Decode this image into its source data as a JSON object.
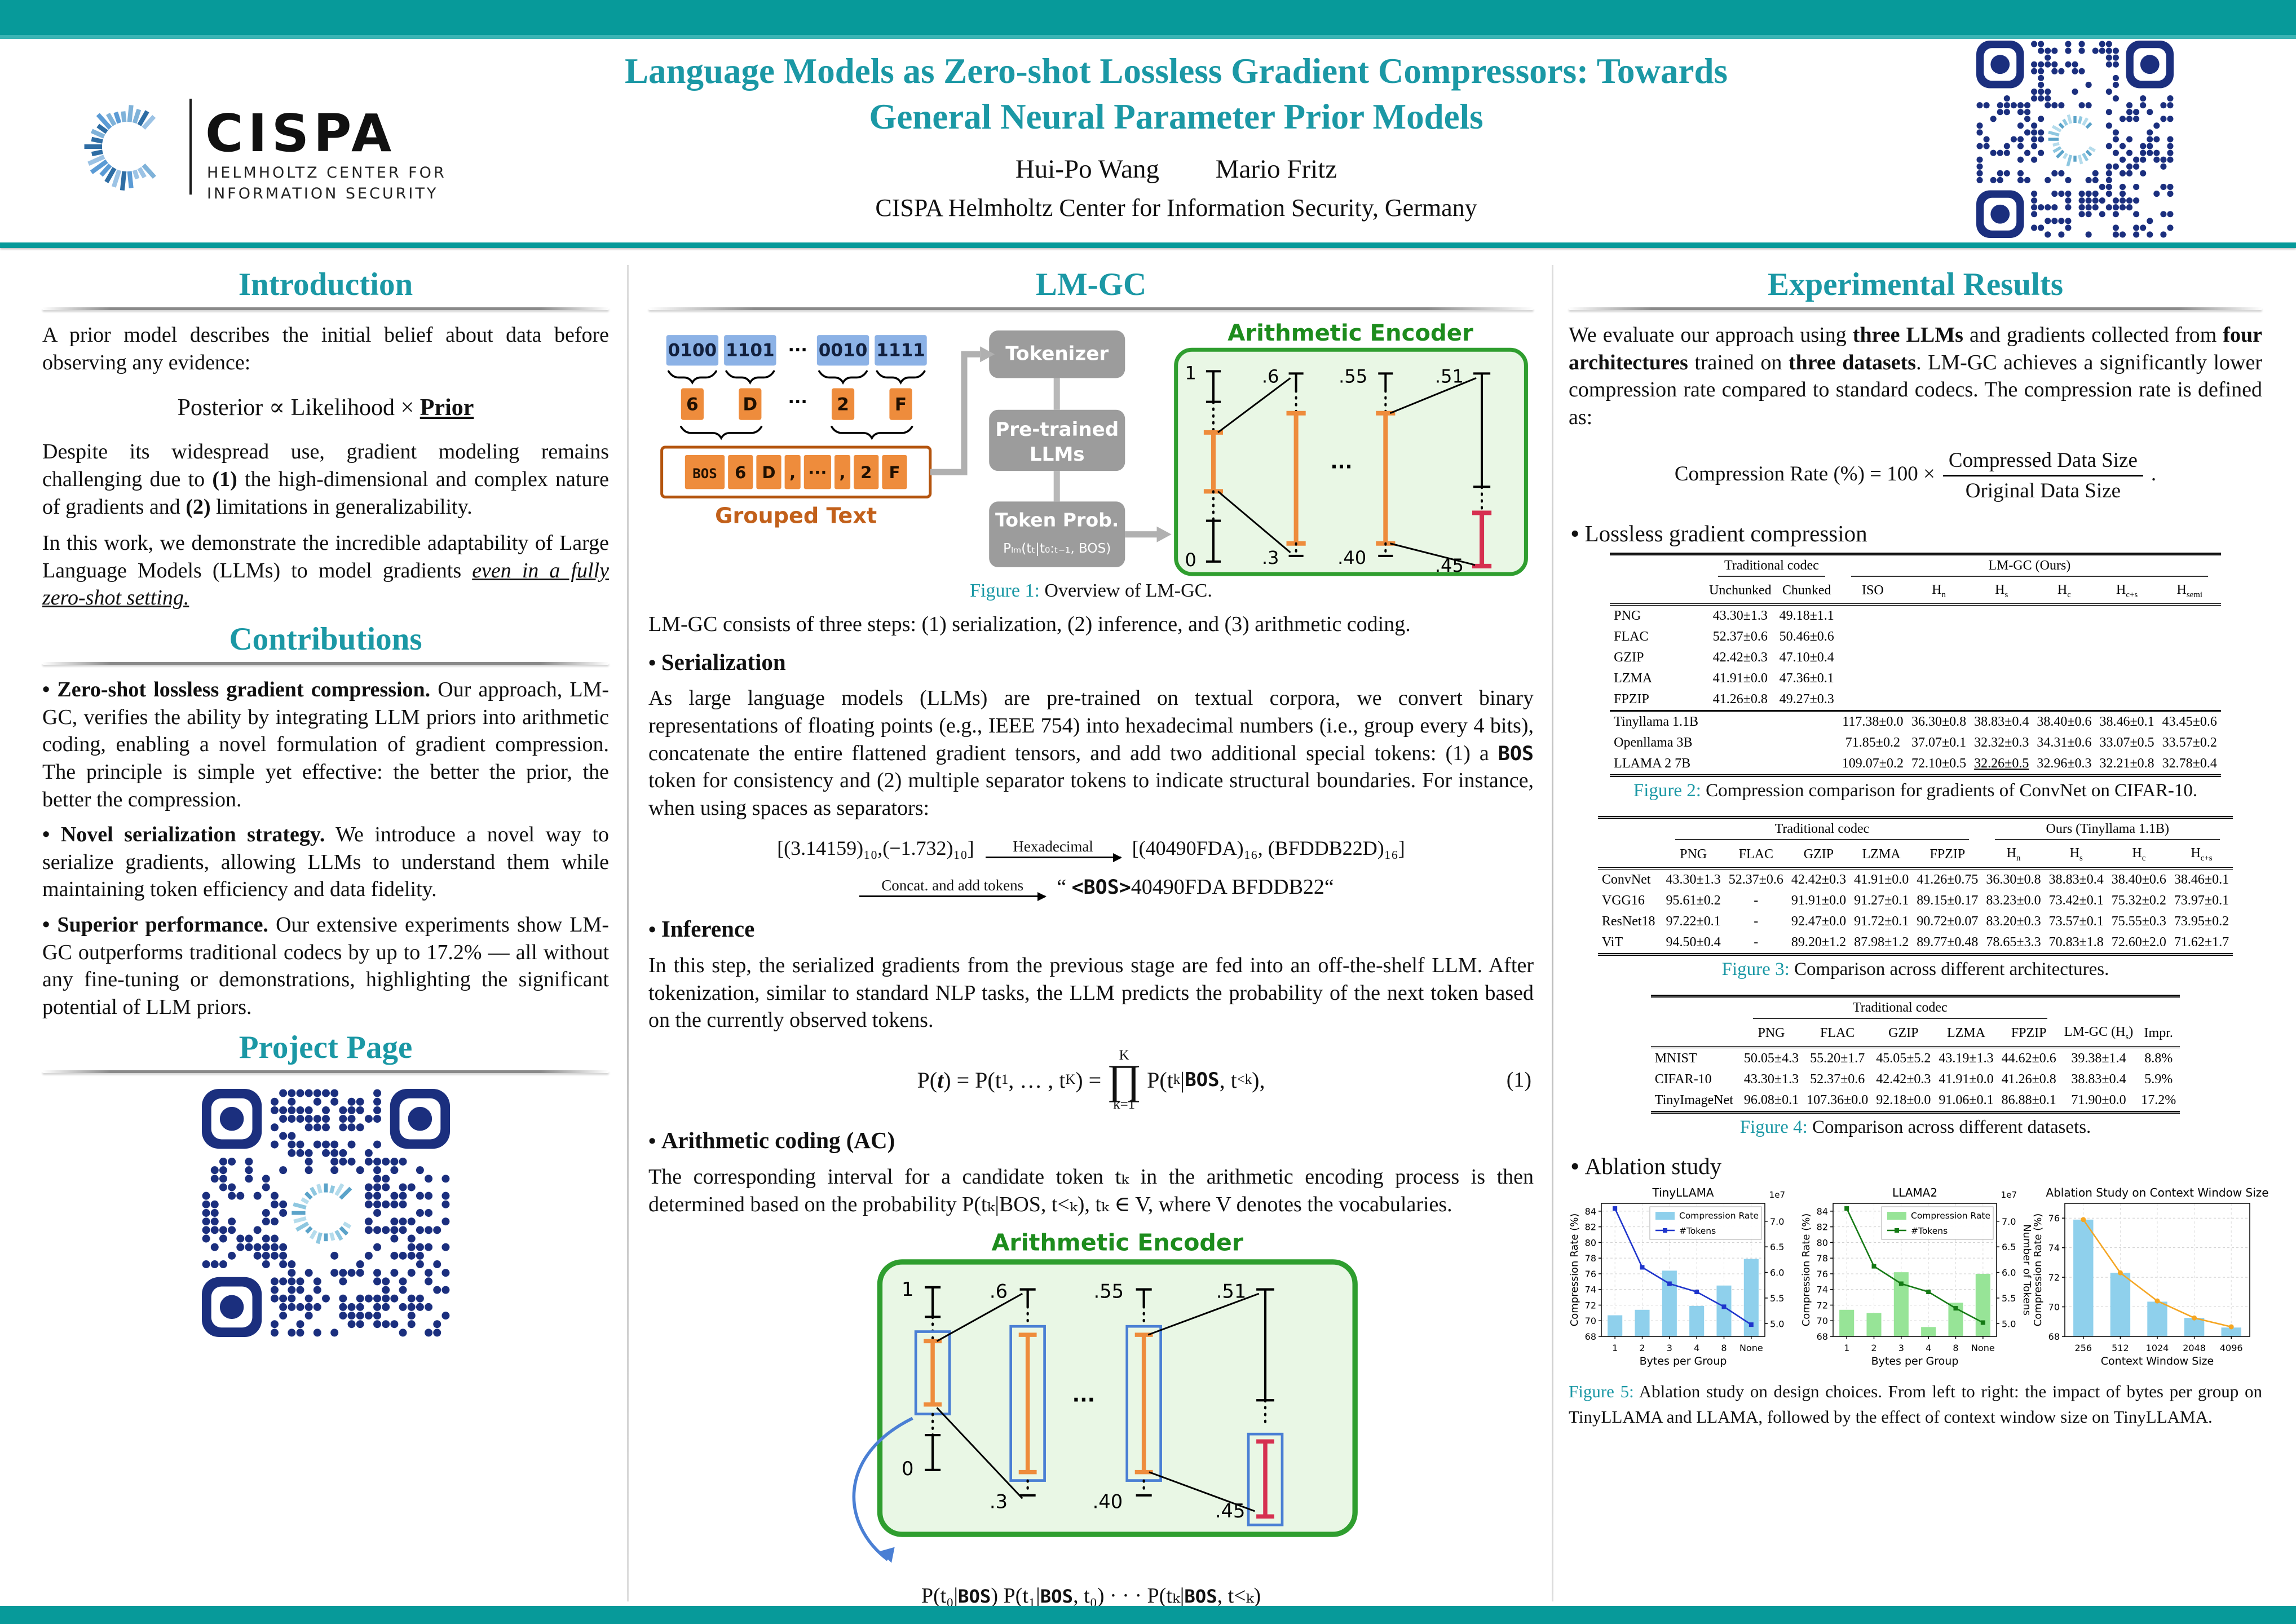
{
  "colors": {
    "teal_band": "#079a9a",
    "teal_heading": "#1b98a5",
    "qr_navy": "#1b2f7e",
    "orange": "#ee8c3c",
    "orange_dark": "#b4540e",
    "orange_label": "#c2601a",
    "green_title": "#1d8c1d",
    "green_border": "#2f9e2f",
    "green_fill": "#e9f7e5",
    "blue_box": "#8cb2e6",
    "gray_box": "#9c9c9c",
    "red_bar": "#d63050",
    "blue_outline": "#4a7fd4"
  },
  "header": {
    "title_line1": "Language Models as Zero-shot Lossless Gradient Compressors: Towards",
    "title_line2": "General Neural Parameter Prior Models",
    "authors": [
      "Hui-Po Wang",
      "Mario Fritz"
    ],
    "affiliation": "CISPA Helmholtz Center for Information Security, Germany",
    "logo": {
      "name": "CISPA",
      "sub1": "HELMHOLTZ CENTER FOR",
      "sub2": "INFORMATION SECURITY"
    }
  },
  "intro": {
    "heading": "Introduction",
    "p1": "A prior model describes the initial belief about data before observing any evidence:",
    "formula": {
      "posterior": "Posterior",
      "propto": "∝",
      "likelihood": "Likelihood",
      "times": "×",
      "prior": "Prior"
    },
    "p2_parts": [
      "Despite its widespread use, gradient modeling remains challenging due to ",
      "(1)",
      " the high-dimensional and complex nature of gradients and ",
      "(2)",
      " limitations in generalizability."
    ],
    "p3_parts": [
      "In this work, we demonstrate the incredible adaptability of Large Language Models (LLMs) to model gradients ",
      "even in a fully zero-shot setting."
    ]
  },
  "contributions": {
    "heading": "Contributions",
    "items": [
      {
        "lead": "Zero-shot lossless gradient compression.",
        "body": "Our approach, LM-GC, verifies the ability by integrating LLM priors into arithmetic coding, enabling a novel formulation of gradient compression. The principle is simple yet effective: the better the prior, the better the compression."
      },
      {
        "lead": "Novel serialization strategy.",
        "body": "We introduce a novel way to serialize gradients, allowing LLMs to understand them while maintaining token efficiency and data fidelity."
      },
      {
        "lead": "Superior performance.",
        "body": "Our extensive experiments show LM-GC outperforms traditional codecs by up to 17.2% — all without any fine-tuning or demonstrations, highlighting the significant potential of LLM priors."
      }
    ]
  },
  "project_page": {
    "heading": "Project Page"
  },
  "lmgc": {
    "heading": "LM-GC",
    "fig1": {
      "binary_tokens": [
        "0100",
        "1101",
        "···",
        "0010",
        "1111"
      ],
      "hex_tokens": [
        "6",
        "D",
        "···",
        "2",
        "F"
      ],
      "grouped_tokens": [
        "BOS",
        "6",
        "D",
        ",",
        "···",
        ",",
        "2",
        "F"
      ],
      "grouped_label": "Grouped Text",
      "pipeline": [
        "Tokenizer",
        "Pre-trained",
        "LLMs",
        "Token Prob."
      ],
      "token_prob_formula": "Pₗₘ(tₜ|t₀:ₜ₋₁, BOS)",
      "encoder_title": "Arithmetic Encoder",
      "axis_labels": {
        "one": "1",
        "zero": "0",
        "l2t": ".6",
        "l2b": ".3",
        "l3t": ".55",
        "l3b": ".40",
        "l4t": ".51",
        "l4b": ".45",
        "dots": "···"
      },
      "caption_prefix": "Figure 1:",
      "caption": "Overview of LM-GC."
    },
    "steps_text": "LM-GC consists of three steps: (1) serialization, (2) inference, and (3) arithmetic coding.",
    "serialization": {
      "heading": "Serialization",
      "body_parts": [
        "As large language models (LLMs) are pre-trained on textual corpora, we convert binary representations of floating points (e.g., IEEE 754) into hexadecimal numbers (i.e., group every 4 bits), concatenate the entire flattened gradient tensors, and add two additional special tokens: (1) a ",
        "BOS",
        " token for consistency and (2) multiple separator tokens to indicate structural boundaries. For instance, when using spaces as separators:"
      ],
      "ex1": {
        "lhs": "[(3.14159)₁₀,(−1.732)₁₀]",
        "arrow_label": "Hexadecimal",
        "rhs": "[(40490FDA)₁₆, (BFDDB22D)₁₆]"
      },
      "ex2": {
        "arrow_label": "Concat. and add tokens",
        "quote_open": "“ ",
        "bos": "<BOS>",
        "rest": "40490FDA BFDDB22",
        "quote_close": "“"
      }
    },
    "inference": {
      "heading": "Inference",
      "body": "In this step, the serialized gradients from the previous stage are fed into an off-the-shelf LLM. After tokenization, similar to standard NLP tasks, the LLM predicts the probability of the next token based on the currently observed tokens.",
      "eq": {
        "p1": "P(",
        "t": "t",
        "p2": ") = P(t",
        "s1": "1",
        "p3": ", … , t",
        "sK": "K",
        "p4": ") =",
        "prod": "∏",
        "prodTop": "K",
        "prodBot": "k=1",
        "p5": "P(t",
        "sk": "k",
        "bar": "|",
        "bos": "BOS",
        "p6": ", t",
        "slt": "<k",
        "p7": "),",
        "tag": "(1)"
      }
    },
    "ac": {
      "heading": "Arithmetic coding (AC)",
      "body": "The corresponding interval for a candidate token tₖ in the arithmetic encoding process is then determined based on the probability P(tₖ|BOS, t<ₖ), tₖ ∈ V, where V denotes the vocabularies."
    },
    "encoder2": {
      "title": "Arithmetic Encoder",
      "caption_parts": [
        "P(t₀|",
        "BOS",
        ") P(t₁|",
        "BOS",
        ", t₀)  · · ·  P(tₖ|",
        "BOS",
        ", t<ₖ)"
      ]
    }
  },
  "results": {
    "heading": "Experimental Results",
    "p1_parts": [
      "We evaluate our approach using ",
      "three LLMs",
      " and gradients collected from ",
      "four architectures",
      " trained on ",
      "three datasets",
      ". LM-GC achieves a significantly lower compression rate compared to standard codecs. The compression rate is defined as:"
    ],
    "formula": {
      "lhs": "Compression Rate (%) = 100 ×",
      "num": "Compressed Data Size",
      "den": "Original Data Size",
      "period": "."
    },
    "bullet1": "Lossless gradient compression",
    "fig2": {
      "group_headers": [
        {
          "label": "",
          "span": 1
        },
        {
          "label": "Traditional codec",
          "span": 2
        },
        {
          "label": "LM-GC (Ours)",
          "span": 6
        }
      ],
      "headers": [
        "",
        "Unchunked",
        "Chunked",
        "ISO",
        "H_n",
        "H_s",
        "H_c",
        "H_c+s",
        "H_semi"
      ],
      "rows": [
        {
          "label": "PNG",
          "cells": [
            "43.30±1.3",
            "49.18±1.1",
            "",
            "",
            "",
            "",
            "",
            ""
          ]
        },
        {
          "label": "FLAC",
          "cells": [
            "52.37±0.6",
            "50.46±0.6",
            "",
            "",
            "",
            "",
            "",
            ""
          ]
        },
        {
          "label": "GZIP",
          "cells": [
            "42.42±0.3",
            "47.10±0.4",
            "",
            "",
            "",
            "",
            "",
            ""
          ]
        },
        {
          "label": "LZMA",
          "cells": [
            "41.91±0.0",
            "47.36±0.1",
            "",
            "",
            "",
            "",
            "",
            ""
          ]
        },
        {
          "label": "FPZIP",
          "cells": [
            "41.26±0.8",
            "49.27±0.3",
            "",
            "",
            "",
            "",
            "",
            ""
          ]
        },
        {
          "label": "Tinyllama 1.1B",
          "sep": true,
          "cells": [
            "",
            "",
            "117.38±0.0",
            "36.30±0.8",
            "38.83±0.4",
            "38.40±0.6",
            "38.46±0.1",
            "43.45±0.6"
          ]
        },
        {
          "label": "Openllama 3B",
          "cells": [
            "",
            "",
            "71.85±0.2",
            "37.07±0.1",
            "32.32±0.3",
            "34.31±0.6",
            "33.07±0.5",
            "33.57±0.2"
          ]
        },
        {
          "label": "LLAMA 2 7B",
          "cells": [
            "",
            "",
            "109.07±0.2",
            "72.10±0.5",
            "u:32.26±0.5",
            "32.96±0.3",
            "b:32.21±0.8",
            "32.78±0.4"
          ]
        }
      ],
      "caption_prefix": "Figure 2:",
      "caption": "Compression comparison for gradients of ConvNet on CIFAR-10."
    },
    "fig3": {
      "group_headers": [
        {
          "label": "",
          "span": 1
        },
        {
          "label": "Traditional codec",
          "span": 5
        },
        {
          "label": "Ours (Tinyllama 1.1B)",
          "span": 4
        }
      ],
      "headers": [
        "",
        "PNG",
        "FLAC",
        "GZIP",
        "LZMA",
        "FPZIP",
        "H_n",
        "H_s",
        "H_c",
        "H_c+s"
      ],
      "rows": [
        {
          "label": "ConvNet",
          "cells": [
            "43.30±1.3",
            "52.37±0.6",
            "42.42±0.3",
            "41.91±0.0",
            "41.26±0.75",
            "b:36.30±0.8",
            "38.83±0.4",
            "38.40±0.6",
            "38.46±0.1"
          ]
        },
        {
          "label": "VGG16",
          "cells": [
            "95.61±0.2",
            "-",
            "91.91±0.0",
            "91.27±0.1",
            "89.15±0.17",
            "83.23±0.0",
            "b:73.42±0.1",
            "75.32±0.2",
            "73.97±0.1"
          ]
        },
        {
          "label": "ResNet18",
          "cells": [
            "97.22±0.1",
            "-",
            "92.47±0.0",
            "91.72±0.1",
            "90.72±0.07",
            "83.20±0.3",
            "b:73.57±0.1",
            "75.55±0.3",
            "73.95±0.2"
          ]
        },
        {
          "label": "ViT",
          "cells": [
            "94.50±0.4",
            "-",
            "89.20±1.2",
            "87.98±1.2",
            "89.77±0.48",
            "78.65±3.3",
            "b:70.83±1.8",
            "72.60±2.0",
            "71.62±1.7"
          ]
        }
      ],
      "caption_prefix": "Figure 3:",
      "caption": "Comparison across different architectures."
    },
    "fig4": {
      "group_headers": [
        {
          "label": "",
          "span": 1
        },
        {
          "label": "Traditional codec",
          "span": 5
        },
        {
          "label": "",
          "span": 1
        },
        {
          "label": "",
          "span": 1
        }
      ],
      "headers": [
        "",
        "PNG",
        "FLAC",
        "GZIP",
        "LZMA",
        "FPZIP",
        "LM-GC (H_s)",
        "Impr."
      ],
      "rows": [
        {
          "label": "MNIST",
          "cells": [
            "50.05±4.3",
            "55.20±1.7",
            "45.05±5.2",
            "43.19±1.3",
            "44.62±0.6",
            "b:39.38±1.4",
            "8.8%"
          ]
        },
        {
          "label": "CIFAR-10",
          "cells": [
            "43.30±1.3",
            "52.37±0.6",
            "42.42±0.3",
            "41.91±0.0",
            "41.26±0.8",
            "b:38.83±0.4",
            "5.9%"
          ]
        },
        {
          "label": "TinyImageNet",
          "cells": [
            "96.08±0.1",
            "107.36±0.0",
            "92.18±0.0",
            "91.06±0.1",
            "86.88±0.1",
            "b:71.90±0.0",
            "17.2%"
          ]
        }
      ],
      "caption_prefix": "Figure 4:",
      "caption": "Comparison across different datasets."
    },
    "bullet2": "Ablation study",
    "fig5_caption_prefix": "Figure 5:",
    "fig5_caption": "Ablation study on design choices. From left to right: the impact of bytes per group on TinyLLAMA and LLAMA, followed by the effect of context window size on TinyLLAMA."
  },
  "chart_data": [
    {
      "type": "bar+line",
      "title": "TinyLLAMA",
      "xlabel": "Bytes per Group",
      "ylabel": "Compression Rate (%)",
      "categories": [
        "1",
        "2",
        "3",
        "4",
        "8",
        "None"
      ],
      "bar_name": "Compression Rate",
      "bars": [
        70.7,
        71.4,
        76.4,
        71.9,
        74.5,
        77.9
      ],
      "bar_color": "#8fd0ec",
      "line_name": "#Tokens",
      "line_color": "#1f35cc",
      "line_values": [
        7.25,
        6.1,
        5.78,
        5.62,
        5.33,
        4.98
      ],
      "line_axis": "right",
      "marker": "square",
      "ylim": [
        68,
        85
      ],
      "yticks": [
        68,
        70,
        72,
        74,
        76,
        78,
        80,
        82,
        84
      ],
      "right": {
        "lim": [
          4.75,
          7.35
        ],
        "ticks": [
          "5.0",
          "5.5",
          "6.0",
          "6.5",
          "7.0"
        ],
        "offset_label": "1e7",
        "label": ""
      },
      "legend": true,
      "grid": true
    },
    {
      "type": "bar+line",
      "title": "LLAMA2",
      "xlabel": "Bytes per Group",
      "ylabel": "Compression Rate (%)",
      "categories": [
        "1",
        "2",
        "3",
        "4",
        "8",
        "None"
      ],
      "bar_name": "Compression Rate",
      "bars": [
        71.4,
        71.0,
        76.2,
        69.2,
        72.3,
        76.0
      ],
      "bar_color": "#97e497",
      "line_name": "#Tokens",
      "line_color": "#157a15",
      "line_values": [
        7.25,
        6.12,
        5.78,
        5.62,
        5.3,
        5.02
      ],
      "line_axis": "right",
      "marker": "square",
      "ylim": [
        68,
        85
      ],
      "yticks": [
        68,
        70,
        72,
        74,
        76,
        78,
        80,
        82,
        84
      ],
      "right": {
        "lim": [
          4.75,
          7.35
        ],
        "ticks": [
          "5.0",
          "5.5",
          "6.0",
          "6.5",
          "7.0"
        ],
        "offset_label": "1e7",
        "label": "Number of Tokens"
      },
      "legend": true,
      "grid": true
    },
    {
      "type": "bar+line",
      "title": "Ablation Study on Context Window Size",
      "xlabel": "Context Window Size",
      "ylabel": "Compression Rate (%)",
      "categories": [
        "256",
        "512",
        "1024",
        "2048",
        "4096"
      ],
      "bar_name": "Compression Rate",
      "bars": [
        75.9,
        72.3,
        70.35,
        69.25,
        68.6
      ],
      "bar_color": "#8fd0ec",
      "line_name": "",
      "line_color": "#f5a623",
      "line_values": [
        75.9,
        72.3,
        70.4,
        69.25,
        68.65
      ],
      "line_axis": "left",
      "marker": "circle",
      "ylim": [
        68,
        77
      ],
      "yticks": [
        68,
        70,
        72,
        74,
        76
      ],
      "legend": false,
      "grid": true
    }
  ]
}
